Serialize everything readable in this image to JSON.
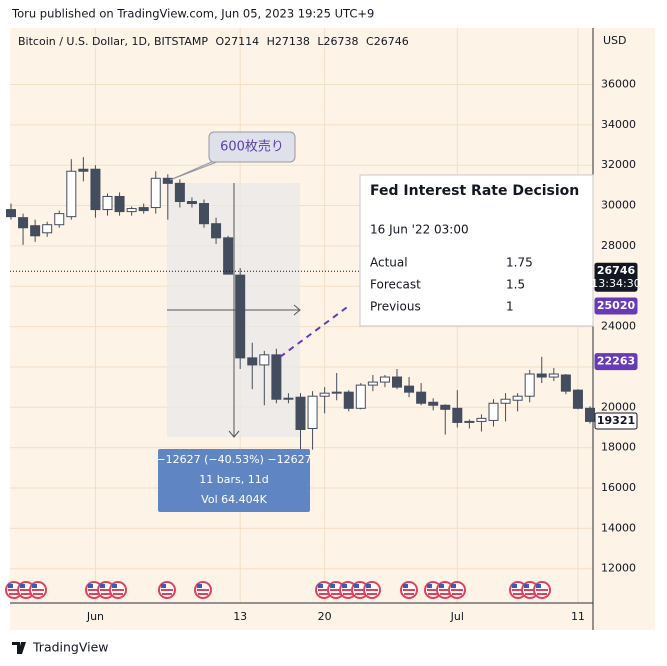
{
  "header": "Toru published on TradingView.com, Jun 05, 2023 19:25 UTC+9",
  "footer": "TradingView",
  "chart_data": {
    "type": "candlestick",
    "symbol": "Bitcoin / U.S. Dollar, 1D, BITSTAMP",
    "ohlc_legend": [
      "O27114",
      "H27138",
      "L26738",
      "C26746"
    ],
    "currency": "USD",
    "categories": [
      null,
      null,
      null,
      null,
      null,
      null,
      null,
      "Jun",
      null,
      null,
      null,
      null,
      null,
      null,
      null,
      null,
      null,
      null,
      null,
      "13",
      null,
      null,
      null,
      null,
      null,
      null,
      "20",
      null,
      null,
      null,
      null,
      null,
      null,
      null,
      null,
      null,
      null,
      "Jul",
      null,
      null,
      null,
      null,
      null,
      null,
      null,
      null,
      null,
      "11",
      null
    ],
    "open": [
      29800,
      29400,
      29000,
      28650,
      29050,
      29450,
      31800,
      31800,
      29800,
      30450,
      29700,
      29900,
      29900,
      31350,
      31100,
      30200,
      30100,
      29100,
      28400,
      26550,
      22450,
      22100,
      22600,
      20400,
      20500,
      18950,
      20550,
      20700,
      20750,
      19950,
      21100,
      21250,
      21500,
      21050,
      20750,
      20250,
      20100,
      19950,
      19250,
      19300,
      19350,
      20200,
      20350,
      20550,
      21650,
      21500,
      21600,
      20850,
      19950
    ],
    "high": [
      30100,
      29600,
      29300,
      29200,
      29750,
      32300,
      32400,
      32000,
      30600,
      30650,
      29950,
      30100,
      31700,
      31550,
      31300,
      30400,
      30300,
      29400,
      28500,
      26900,
      23200,
      22800,
      22900,
      20700,
      20700,
      20800,
      21000,
      21700,
      20850,
      21200,
      21600,
      21600,
      21900,
      21500,
      21200,
      20450,
      20150,
      20850,
      19400,
      19650,
      20400,
      20700,
      20700,
      21850,
      22500,
      21950,
      21650,
      20900,
      20050
    ],
    "low": [
      29300,
      28050,
      28200,
      28450,
      28900,
      29300,
      31200,
      29400,
      29500,
      29500,
      29500,
      29600,
      29600,
      29300,
      29900,
      29900,
      28900,
      28100,
      26600,
      21900,
      20900,
      20100,
      20200,
      20200,
      17600,
      17900,
      19700,
      20350,
      19800,
      19900,
      20800,
      21000,
      20900,
      20500,
      20100,
      19850,
      18650,
      19000,
      18950,
      18800,
      19050,
      19300,
      19800,
      20250,
      21200,
      21300,
      20650,
      19900,
      19200
    ],
    "close": [
      29450,
      28900,
      28500,
      29050,
      29600,
      31700,
      31700,
      29800,
      30450,
      29700,
      29850,
      29750,
      31350,
      31100,
      30200,
      30100,
      29100,
      28400,
      26600,
      22450,
      22100,
      22600,
      20400,
      20450,
      18900,
      20550,
      20700,
      20750,
      19950,
      21100,
      21250,
      21500,
      21000,
      20750,
      20200,
      20100,
      19900,
      19250,
      19300,
      19450,
      20200,
      20400,
      20550,
      21650,
      21500,
      21650,
      20800,
      19950,
      19300
    ],
    "up_color": "#ffffff",
    "down_color": "#434d5e",
    "ylim": [
      10300,
      38800
    ],
    "yticks": [
      12000,
      14000,
      16000,
      18000,
      20000,
      22000,
      24000,
      26000,
      28000,
      30000,
      32000,
      34000,
      36000
    ],
    "grid": true,
    "price_labels": [
      {
        "value": 26746,
        "time": "13:34:30",
        "color": "#131722"
      },
      {
        "value": 25020,
        "color": "#673ab7"
      },
      {
        "value": 22263,
        "color": "#673ab7"
      },
      {
        "value": 19321,
        "color": "#ffffff"
      }
    ],
    "callout": "600枚売り",
    "measure": [
      "−12627 (−40.53%) −12627",
      "11 bars, 11d",
      "Vol 64.404K"
    ],
    "event_tooltip": {
      "title": "Fed Interest Rate Decision",
      "time": "16 Jun '22 03:00",
      "rows": [
        [
          "Actual",
          1.75
        ],
        [
          "Forecast",
          1.5
        ],
        [
          "Previous",
          1
        ]
      ]
    }
  }
}
